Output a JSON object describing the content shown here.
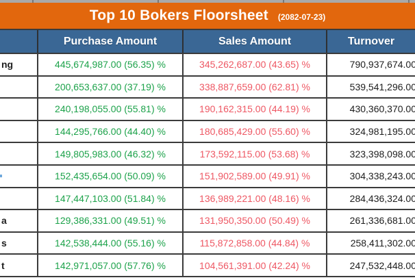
{
  "title": {
    "text": "Top 10 Bokers Floorsheet",
    "date": "(2082-07-23)"
  },
  "columns": {
    "broker": "",
    "purchase": "Purchase Amount",
    "sales": "Sales Amount",
    "turnover": "Turnover"
  },
  "colors": {
    "title_bar_orange": "#e2670d",
    "header_blue": "#3a6795",
    "purchase_green": "#1ca24a",
    "sales_red": "#ee5763",
    "grid_border": "#3b3b3b"
  },
  "rows": [
    {
      "name_fragment": "ng",
      "purchase": "445,674,987.00 (56.35) %",
      "sales": "345,262,687.00 (43.65) %",
      "turnover": "790,937,674.00"
    },
    {
      "name_fragment": "",
      "purchase": "200,653,637.00 (37.19) %",
      "sales": "338,887,659.00 (62.81) %",
      "turnover": "539,541,296.00"
    },
    {
      "name_fragment": "",
      "purchase": "240,198,055.00 (55.81) %",
      "sales": "190,162,315.00 (44.19) %",
      "turnover": "430,360,370.00"
    },
    {
      "name_fragment": "",
      "purchase": "144,295,766.00 (44.40) %",
      "sales": "180,685,429.00 (55.60) %",
      "turnover": "324,981,195.00"
    },
    {
      "name_fragment": "",
      "purchase": "149,805,983.00 (46.32) %",
      "sales": "173,592,115.00 (53.68) %",
      "turnover": "323,398,098.00"
    },
    {
      "name_fragment": "",
      "blue_mark": true,
      "purchase": "152,435,654.00 (50.09) %",
      "sales": "151,902,589.00 (49.91) %",
      "turnover": "304,338,243.00"
    },
    {
      "name_fragment": "",
      "purchase": "147,447,103.00 (51.84) %",
      "sales": "136,989,221.00 (48.16) %",
      "turnover": "284,436,324.00"
    },
    {
      "name_fragment": "a",
      "purchase": "129,386,331.00 (49.51) %",
      "sales": "131,950,350.00 (50.49) %",
      "turnover": "261,336,681.00"
    },
    {
      "name_fragment": "s",
      "purchase": "142,538,444.00 (55.16) %",
      "sales": "115,872,858.00 (44.84) %",
      "turnover": "258,411,302.00"
    },
    {
      "name_fragment": "t",
      "purchase": "142,971,057.00 (57.76) %",
      "sales": "104,561,391.00 (42.24) %",
      "turnover": "247,532,448.00"
    }
  ]
}
